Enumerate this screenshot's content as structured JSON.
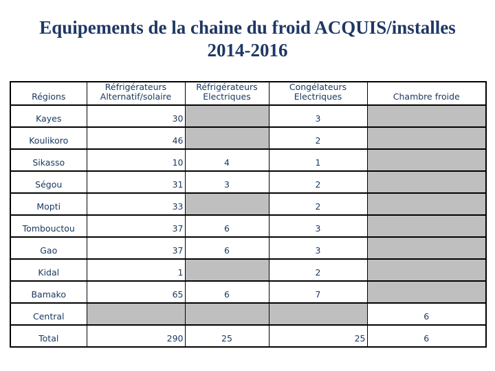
{
  "title": {
    "line1": "Equipements de la chaine du froid ACQUIS/installes",
    "line2": "2014-2016"
  },
  "table": {
    "headers": [
      "Régions",
      "Réfrigérateurs Alternatif/solaire",
      "Réfrigérateurs Electriques",
      "Congélateurs Electriques",
      "Chambre froide"
    ],
    "rows": [
      {
        "region": "Kayes",
        "cells": [
          {
            "v": "30",
            "align": "right"
          },
          {
            "gray": true
          },
          {
            "v": "3",
            "align": "center"
          },
          {
            "gray": true
          }
        ]
      },
      {
        "region": "Koulikoro",
        "cells": [
          {
            "v": "46",
            "align": "right"
          },
          {
            "gray": true
          },
          {
            "v": "2",
            "align": "center"
          },
          {
            "gray": true
          }
        ]
      },
      {
        "region": "Sikasso",
        "cells": [
          {
            "v": "10",
            "align": "right"
          },
          {
            "v": "4",
            "align": "center"
          },
          {
            "v": "1",
            "align": "center"
          },
          {
            "gray": true
          }
        ]
      },
      {
        "region": "Ségou",
        "cells": [
          {
            "v": "31",
            "align": "right"
          },
          {
            "v": "3",
            "align": "center"
          },
          {
            "v": "2",
            "align": "center"
          },
          {
            "gray": true
          }
        ]
      },
      {
        "region": "Mopti",
        "cells": [
          {
            "v": "33",
            "align": "right"
          },
          {
            "gray": true
          },
          {
            "v": "2",
            "align": "center"
          },
          {
            "gray": true
          }
        ]
      },
      {
        "region": "Tombouctou",
        "cells": [
          {
            "v": "37",
            "align": "right"
          },
          {
            "v": "6",
            "align": "center"
          },
          {
            "v": "3",
            "align": "center"
          },
          {
            "gray": true
          }
        ]
      },
      {
        "region": "Gao",
        "cells": [
          {
            "v": "37",
            "align": "right"
          },
          {
            "v": "6",
            "align": "center"
          },
          {
            "v": "3",
            "align": "center"
          },
          {
            "gray": true
          }
        ]
      },
      {
        "region": "Kidal",
        "cells": [
          {
            "v": "1",
            "align": "right"
          },
          {
            "gray": true
          },
          {
            "v": "2",
            "align": "center"
          },
          {
            "gray": true
          }
        ]
      },
      {
        "region": "Bamako",
        "cells": [
          {
            "v": "65",
            "align": "right"
          },
          {
            "v": "6",
            "align": "center"
          },
          {
            "v": "7",
            "align": "center"
          },
          {
            "gray": true
          }
        ]
      },
      {
        "region": "Central",
        "cells": [
          {
            "gray": true
          },
          {
            "gray": true
          },
          {
            "gray": true
          },
          {
            "v": "6",
            "align": "center"
          }
        ]
      },
      {
        "region": "Total",
        "cells": [
          {
            "v": "290",
            "align": "right"
          },
          {
            "v": "25",
            "align": "center"
          },
          {
            "v": "25",
            "align": "right-tight"
          },
          {
            "v": "6",
            "align": "center"
          }
        ]
      }
    ],
    "colors": {
      "grid": "#000000",
      "empty_cell": "#bfbfbf",
      "text": "#17365d",
      "title": "#1f3864",
      "background": "#ffffff"
    }
  }
}
